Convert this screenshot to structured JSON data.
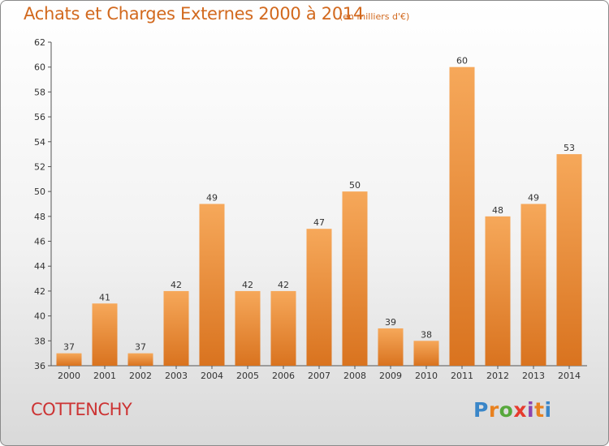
{
  "header": {
    "title": "Achats et Charges Externes 2000 à 2014",
    "subtitle": "(en milliers d'€)"
  },
  "footer": {
    "place": "COTTENCHY",
    "logo": "Proxiti",
    "logo_colors": [
      "#3a86c8",
      "#e8811f",
      "#57a83c",
      "#e63b2e",
      "#8e44ad",
      "#e8811f",
      "#3a86c8"
    ]
  },
  "colors": {
    "bar_light": "#f6a85a",
    "bar_dark": "#d9731f",
    "title": "#d2691e",
    "place": "#cc3333"
  },
  "chart_data": {
    "type": "bar",
    "categories": [
      "2000",
      "2001",
      "2002",
      "2003",
      "2004",
      "2005",
      "2006",
      "2007",
      "2008",
      "2009",
      "2010",
      "2011",
      "2012",
      "2013",
      "2014"
    ],
    "values": [
      37,
      41,
      37,
      42,
      49,
      42,
      42,
      47,
      50,
      39,
      38,
      60,
      48,
      49,
      53
    ],
    "ylim": [
      36,
      62
    ],
    "yticks": [
      36,
      38,
      40,
      42,
      44,
      46,
      48,
      50,
      52,
      54,
      56,
      58,
      60,
      62
    ],
    "title": "Achats et Charges Externes 2000 à 2014",
    "xlabel": "",
    "ylabel": "",
    "grid": false,
    "data_labels": true
  }
}
